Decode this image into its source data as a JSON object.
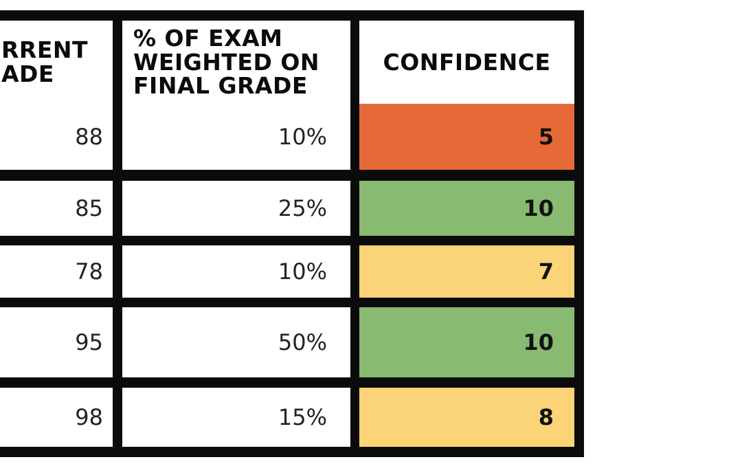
{
  "table": {
    "headers": {
      "current_grade": "RRENT\nADE",
      "exam_weight": "% OF EXAM\nWEIGHTED ON\nFINAL GRADE",
      "confidence": "CONFIDENCE"
    },
    "rows": [
      {
        "grade": "88",
        "weight": "10%",
        "confidence": "5",
        "confidence_color": "#E66A38"
      },
      {
        "grade": "85",
        "weight": "25%",
        "confidence": "10",
        "confidence_color": "#89BA71"
      },
      {
        "grade": "78",
        "weight": "10%",
        "confidence": "7",
        "confidence_color": "#FCD478"
      },
      {
        "grade": "95",
        "weight": "50%",
        "confidence": "10",
        "confidence_color": "#89BA71"
      },
      {
        "grade": "98",
        "weight": "15%",
        "confidence": "8",
        "confidence_color": "#FCD478"
      }
    ]
  }
}
